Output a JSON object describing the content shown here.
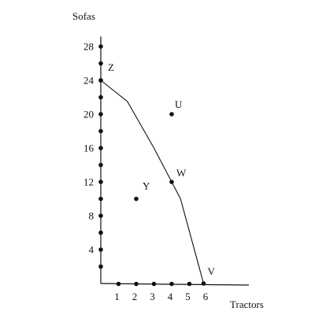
{
  "chart_data": {
    "type": "line",
    "xlabel": "Tractors",
    "ylabel": "Sofas",
    "xlim": [
      0,
      8
    ],
    "ylim": [
      0,
      29
    ],
    "x_ticks": [
      "1",
      "2",
      "3",
      "4",
      "5",
      "6"
    ],
    "y_ticks": [
      "4",
      "8",
      "12",
      "16",
      "20",
      "24",
      "28"
    ],
    "x_tick_values": [
      1,
      2,
      3,
      4,
      5,
      6
    ],
    "y_tick_values": [
      4,
      8,
      12,
      16,
      20,
      24,
      28
    ],
    "frontier": [
      {
        "x": 0,
        "y": 24
      },
      {
        "x": 1.5,
        "y": 21.5
      },
      {
        "x": 3,
        "y": 16
      },
      {
        "x": 4,
        "y": 12
      },
      {
        "x": 4.5,
        "y": 10
      },
      {
        "x": 5.8,
        "y": 0
      }
    ],
    "points": [
      {
        "label": "Z",
        "x": 0,
        "y": 24
      },
      {
        "label": "U",
        "x": 4,
        "y": 20
      },
      {
        "label": "W",
        "x": 4,
        "y": 12
      },
      {
        "label": "Y",
        "x": 2,
        "y": 10
      },
      {
        "label": "V",
        "x": 5.8,
        "y": 0
      }
    ],
    "y_axis_dots": [
      2,
      4,
      6,
      8,
      10,
      12,
      14,
      16,
      18,
      20,
      22,
      24,
      26,
      28
    ],
    "x_axis_dots": [
      1,
      2,
      3,
      4,
      5
    ]
  }
}
